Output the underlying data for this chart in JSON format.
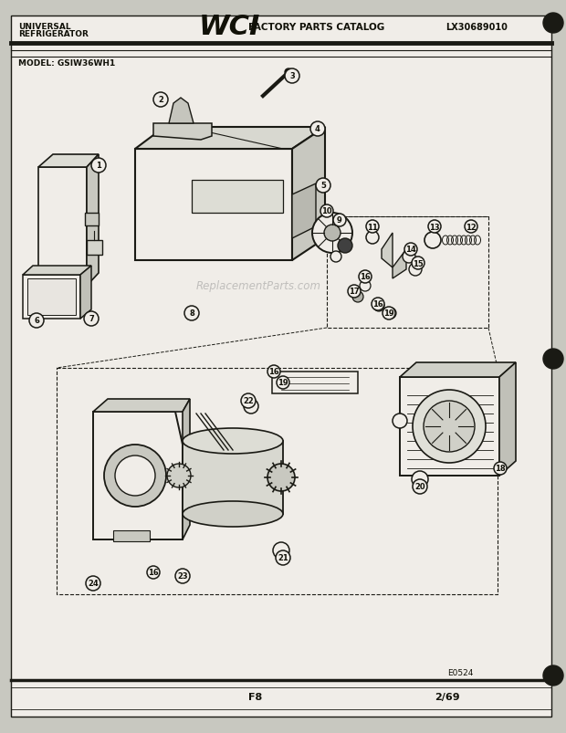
{
  "header_left_line1": "UNIVERSAL",
  "header_left_line2": "REFRIGERATOR",
  "header_center_logo": "WCI",
  "header_center_text": "FACTORY PARTS CATALOG",
  "header_right": "LX30689010",
  "model": "MODEL: GSIW36WH1",
  "footer_left": "F8",
  "footer_right": "2/69",
  "diagram_code": "E0524",
  "watermark": "ReplacementParts.com",
  "bg_color": "#c8c8c0",
  "paper_color": "#f0ede8",
  "line_color": "#1a1a14",
  "text_color": "#111108"
}
